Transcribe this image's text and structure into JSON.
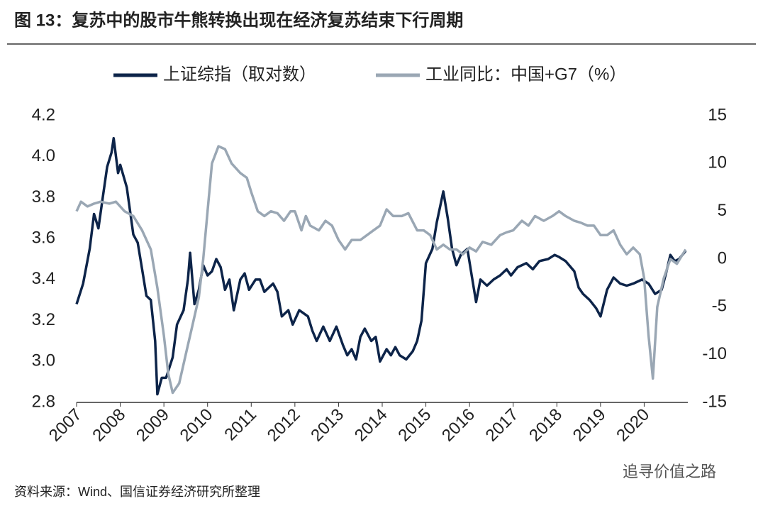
{
  "chart_data": {
    "type": "line",
    "title": "图 13：复苏中的股市牛熊转换出现在经济复苏结束下行周期",
    "source": "资料来源：Wind、国信证券经济研究所整理",
    "watermark": "追寻价值之路",
    "legend": "top",
    "xlim": [
      2007,
      2021
    ],
    "xticks": [
      2007,
      2008,
      2009,
      2010,
      2011,
      2012,
      2013,
      2014,
      2015,
      2016,
      2017,
      2018,
      2019,
      2020
    ],
    "ylim": [
      2.8,
      4.2
    ],
    "yticks": [
      2.8,
      {
        "value": 3,
        "label": "3.0"
      },
      3.2,
      3.4,
      3.6,
      3.8,
      {
        "value": 4,
        "label": "4.0"
      },
      4.2
    ],
    "y2lim": [
      -15,
      15
    ],
    "y2ticks": [
      -15,
      -10,
      -5,
      0,
      5,
      10,
      15
    ],
    "series": [
      {
        "name": "上证综指（取对数）",
        "color": "#0d2449",
        "axis": "y",
        "x": [
          2007.0,
          2007.15,
          2007.3,
          2007.4,
          2007.5,
          2007.6,
          2007.7,
          2007.8,
          2007.85,
          2007.95,
          2008.0,
          2008.15,
          2008.3,
          2008.4,
          2008.5,
          2008.6,
          2008.7,
          2008.8,
          2008.85,
          2008.95,
          2009.05,
          2009.2,
          2009.3,
          2009.45,
          2009.55,
          2009.6,
          2009.7,
          2009.8,
          2009.9,
          2010.0,
          2010.1,
          2010.2,
          2010.3,
          2010.4,
          2010.5,
          2010.6,
          2010.75,
          2010.85,
          2010.95,
          2011.1,
          2011.2,
          2011.3,
          2011.5,
          2011.6,
          2011.7,
          2011.85,
          2011.95,
          2012.1,
          2012.3,
          2012.4,
          2012.5,
          2012.65,
          2012.8,
          2012.95,
          2013.1,
          2013.2,
          2013.3,
          2013.4,
          2013.5,
          2013.6,
          2013.75,
          2013.85,
          2013.95,
          2014.1,
          2014.2,
          2014.3,
          2014.4,
          2014.55,
          2014.7,
          2014.8,
          2014.9,
          2015.0,
          2015.15,
          2015.25,
          2015.4,
          2015.5,
          2015.6,
          2015.7,
          2015.8,
          2015.95,
          2016.05,
          2016.15,
          2016.25,
          2016.4,
          2016.55,
          2016.7,
          2016.85,
          2016.95,
          2017.1,
          2017.3,
          2017.45,
          2017.6,
          2017.8,
          2017.95,
          2018.05,
          2018.2,
          2018.4,
          2018.5,
          2018.6,
          2018.75,
          2018.9,
          2019.0,
          2019.15,
          2019.3,
          2019.45,
          2019.6,
          2019.75,
          2019.95,
          2020.1,
          2020.25,
          2020.4,
          2020.5,
          2020.6,
          2020.7,
          2020.8,
          2020.95
        ],
        "values": [
          3.28,
          3.38,
          3.55,
          3.72,
          3.65,
          3.8,
          3.95,
          4.02,
          4.09,
          3.92,
          3.96,
          3.85,
          3.62,
          3.58,
          3.45,
          3.32,
          3.3,
          3.1,
          2.84,
          2.92,
          2.92,
          3.02,
          3.18,
          3.25,
          3.4,
          3.53,
          3.28,
          3.35,
          3.47,
          3.42,
          3.44,
          3.5,
          3.46,
          3.35,
          3.4,
          3.25,
          3.4,
          3.43,
          3.35,
          3.4,
          3.4,
          3.34,
          3.38,
          3.34,
          3.22,
          3.25,
          3.18,
          3.25,
          3.22,
          3.15,
          3.1,
          3.17,
          3.1,
          3.17,
          3.08,
          3.03,
          3.06,
          3.01,
          3.12,
          3.16,
          3.1,
          3.12,
          3.0,
          3.06,
          3.03,
          3.07,
          3.03,
          3.01,
          3.05,
          3.1,
          3.2,
          3.48,
          3.55,
          3.68,
          3.83,
          3.7,
          3.55,
          3.47,
          3.52,
          3.55,
          3.42,
          3.29,
          3.4,
          3.37,
          3.4,
          3.42,
          3.45,
          3.42,
          3.46,
          3.48,
          3.45,
          3.49,
          3.5,
          3.52,
          3.51,
          3.49,
          3.44,
          3.36,
          3.33,
          3.3,
          3.26,
          3.22,
          3.35,
          3.41,
          3.38,
          3.37,
          3.38,
          3.4,
          3.38,
          3.33,
          3.35,
          3.43,
          3.52,
          3.49,
          3.5,
          3.54
        ]
      },
      {
        "name": "工业同比：中国+G7（%）",
        "color": "#9aa7b4",
        "axis": "y2",
        "x": [
          2007.0,
          2007.1,
          2007.25,
          2007.4,
          2007.55,
          2007.75,
          2007.9,
          2008.1,
          2008.3,
          2008.5,
          2008.7,
          2008.85,
          2009.0,
          2009.1,
          2009.2,
          2009.35,
          2009.5,
          2009.65,
          2009.8,
          2009.9,
          2010.0,
          2010.1,
          2010.25,
          2010.4,
          2010.55,
          2010.75,
          2010.9,
          2011.0,
          2011.15,
          2011.3,
          2011.45,
          2011.6,
          2011.75,
          2011.9,
          2012.0,
          2012.15,
          2012.25,
          2012.35,
          2012.55,
          2012.7,
          2012.85,
          2013.0,
          2013.15,
          2013.3,
          2013.5,
          2013.65,
          2013.8,
          2013.95,
          2014.1,
          2014.25,
          2014.45,
          2014.6,
          2014.8,
          2014.95,
          2015.1,
          2015.25,
          2015.4,
          2015.55,
          2015.7,
          2015.85,
          2016.0,
          2016.15,
          2016.3,
          2016.5,
          2016.7,
          2016.85,
          2017.0,
          2017.2,
          2017.35,
          2017.5,
          2017.7,
          2017.9,
          2018.05,
          2018.2,
          2018.4,
          2018.55,
          2018.7,
          2018.85,
          2019.0,
          2019.15,
          2019.3,
          2019.45,
          2019.6,
          2019.75,
          2019.9,
          2020.0,
          2020.1,
          2020.2,
          2020.3,
          2020.45,
          2020.6,
          2020.75,
          2020.95
        ],
        "values": [
          5,
          6,
          5.5,
          5.8,
          6,
          5.8,
          6,
          5,
          4.5,
          3,
          1,
          -3,
          -8,
          -12,
          -14,
          -13,
          -10,
          -7,
          -4,
          0,
          5,
          10,
          11.8,
          11.5,
          10,
          9,
          8.5,
          7,
          5,
          4.5,
          5,
          4.8,
          4,
          5,
          5,
          3,
          4.5,
          3.5,
          3,
          4,
          3.5,
          2,
          1,
          2,
          2,
          2.5,
          3,
          3.5,
          5.2,
          4.5,
          4.5,
          4.8,
          3,
          3,
          2.5,
          1,
          1.5,
          1,
          1,
          0.5,
          1.2,
          0.8,
          1.8,
          1.5,
          2.5,
          2.8,
          3,
          4,
          3.5,
          4.5,
          4,
          4.5,
          5,
          4.5,
          4,
          3.8,
          3.5,
          3.5,
          2.5,
          2.5,
          3,
          1.5,
          0.5,
          1.2,
          0.5,
          -2,
          -8,
          -12.5,
          -5,
          -2,
          0,
          -0.5,
          1
        ]
      }
    ]
  }
}
